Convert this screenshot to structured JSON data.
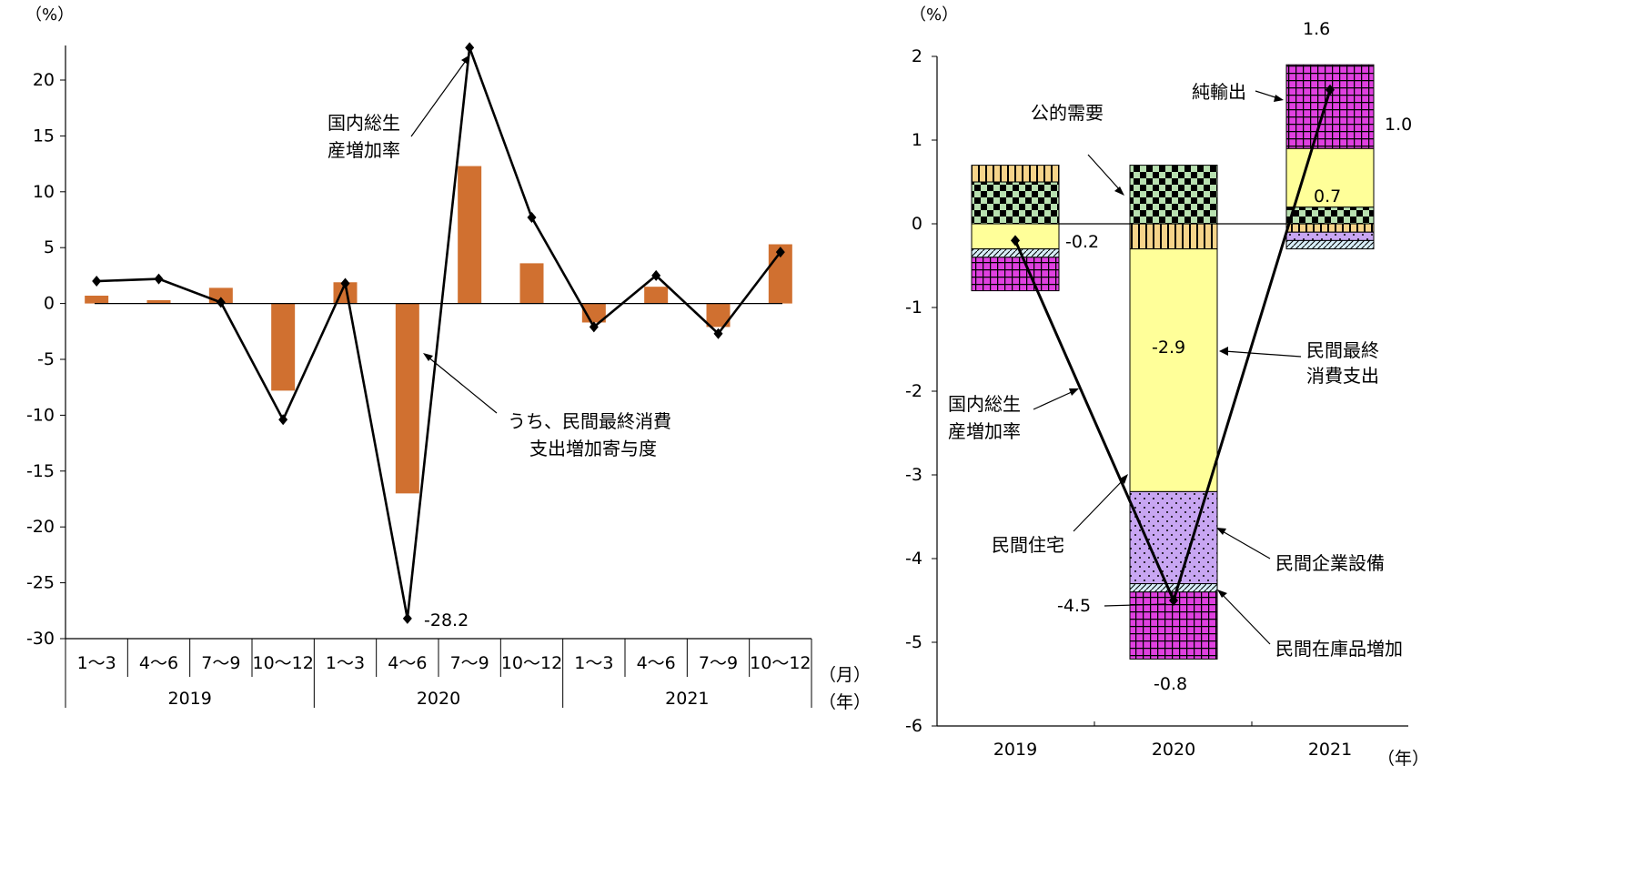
{
  "chart_data": [
    {
      "type": "bar+line",
      "unit_label": "（%）",
      "ylim": [
        -30,
        25
      ],
      "yticks": [
        20,
        15,
        10,
        5,
        0,
        -5,
        -10,
        -15,
        -20,
        -25,
        -30
      ],
      "ytick_labels": [
        "20",
        "15",
        "10",
        "5",
        "0",
        "-5",
        "-10",
        "-15",
        "-20",
        "-25",
        "-30"
      ],
      "categories": [
        "1～3",
        "4～6",
        "7～9",
        "10～12",
        "1～3",
        "4～6",
        "7～9",
        "10～12",
        "1～3",
        "4～6",
        "7～9",
        "10～12"
      ],
      "years": [
        "2019",
        "2020",
        "2021"
      ],
      "month_unit": "（月）",
      "year_unit": "（年）",
      "series": [
        {
          "kind": "bar",
          "color": "#d07030",
          "values": [
            0.7,
            0.3,
            1.4,
            -7.8,
            1.9,
            -17.0,
            12.3,
            3.6,
            -1.7,
            1.5,
            -2.1,
            5.3
          ]
        },
        {
          "kind": "line",
          "color": "#000000",
          "values": [
            2.0,
            2.2,
            0.1,
            -10.4,
            1.8,
            -28.2,
            22.9,
            7.7,
            -2.1,
            2.5,
            -2.7,
            4.6
          ]
        }
      ],
      "annotations": {
        "gdp_label_line1": "国内総生",
        "gdp_label_line2": "産増加率",
        "pce_label_line1": "うち、民間最終消費",
        "pce_label_line2": "支出増加寄与度",
        "min_value_label": "-28.2"
      }
    },
    {
      "type": "stacked_bar+line",
      "unit_label": "（%）",
      "ylim": [
        -6,
        2
      ],
      "yticks": [
        2,
        1,
        0,
        -1,
        -2,
        -3,
        -4,
        -5,
        -6
      ],
      "ytick_labels": [
        "2",
        "1",
        "0",
        "-1",
        "-2",
        "-3",
        "-4",
        "-5",
        "-6"
      ],
      "categories": [
        "2019",
        "2020",
        "2021"
      ],
      "year_unit": "（年）",
      "components": [
        {
          "name": "公的需要",
          "pattern": "checker",
          "values": [
            0.5,
            0.7,
            0.2
          ]
        },
        {
          "name": "民間住宅",
          "pattern": "vstripe",
          "values": [
            0.2,
            -0.3,
            -0.1
          ]
        },
        {
          "name": "民間最終消費支出",
          "pattern": "yellow",
          "values": [
            -0.3,
            -2.9,
            0.7
          ]
        },
        {
          "name": "民間企業設備",
          "pattern": "dots",
          "values": [
            0.0,
            -1.1,
            -0.1
          ]
        },
        {
          "name": "民間在庫品増加",
          "pattern": "diag",
          "values": [
            -0.1,
            -0.1,
            -0.1
          ]
        },
        {
          "name": "純輸出",
          "pattern": "grid",
          "values": [
            -0.4,
            -0.8,
            1.0
          ]
        }
      ],
      "gdp_line": [
        -0.2,
        -4.5,
        1.6
      ],
      "labels": {
        "gdp_2019": "-0.2",
        "pce_2020": "-2.9",
        "gdp_2020": "-4.5",
        "netexp_2020": "-0.8",
        "pce_2021": "0.7",
        "gdp_2021": "1.6",
        "netexp_2021": "1.0",
        "gdp_label_line1": "国内総生",
        "gdp_label_line2": "産増加率",
        "pce_label_line1": "民間最終",
        "pce_label_line2": "消費支出"
      }
    }
  ]
}
